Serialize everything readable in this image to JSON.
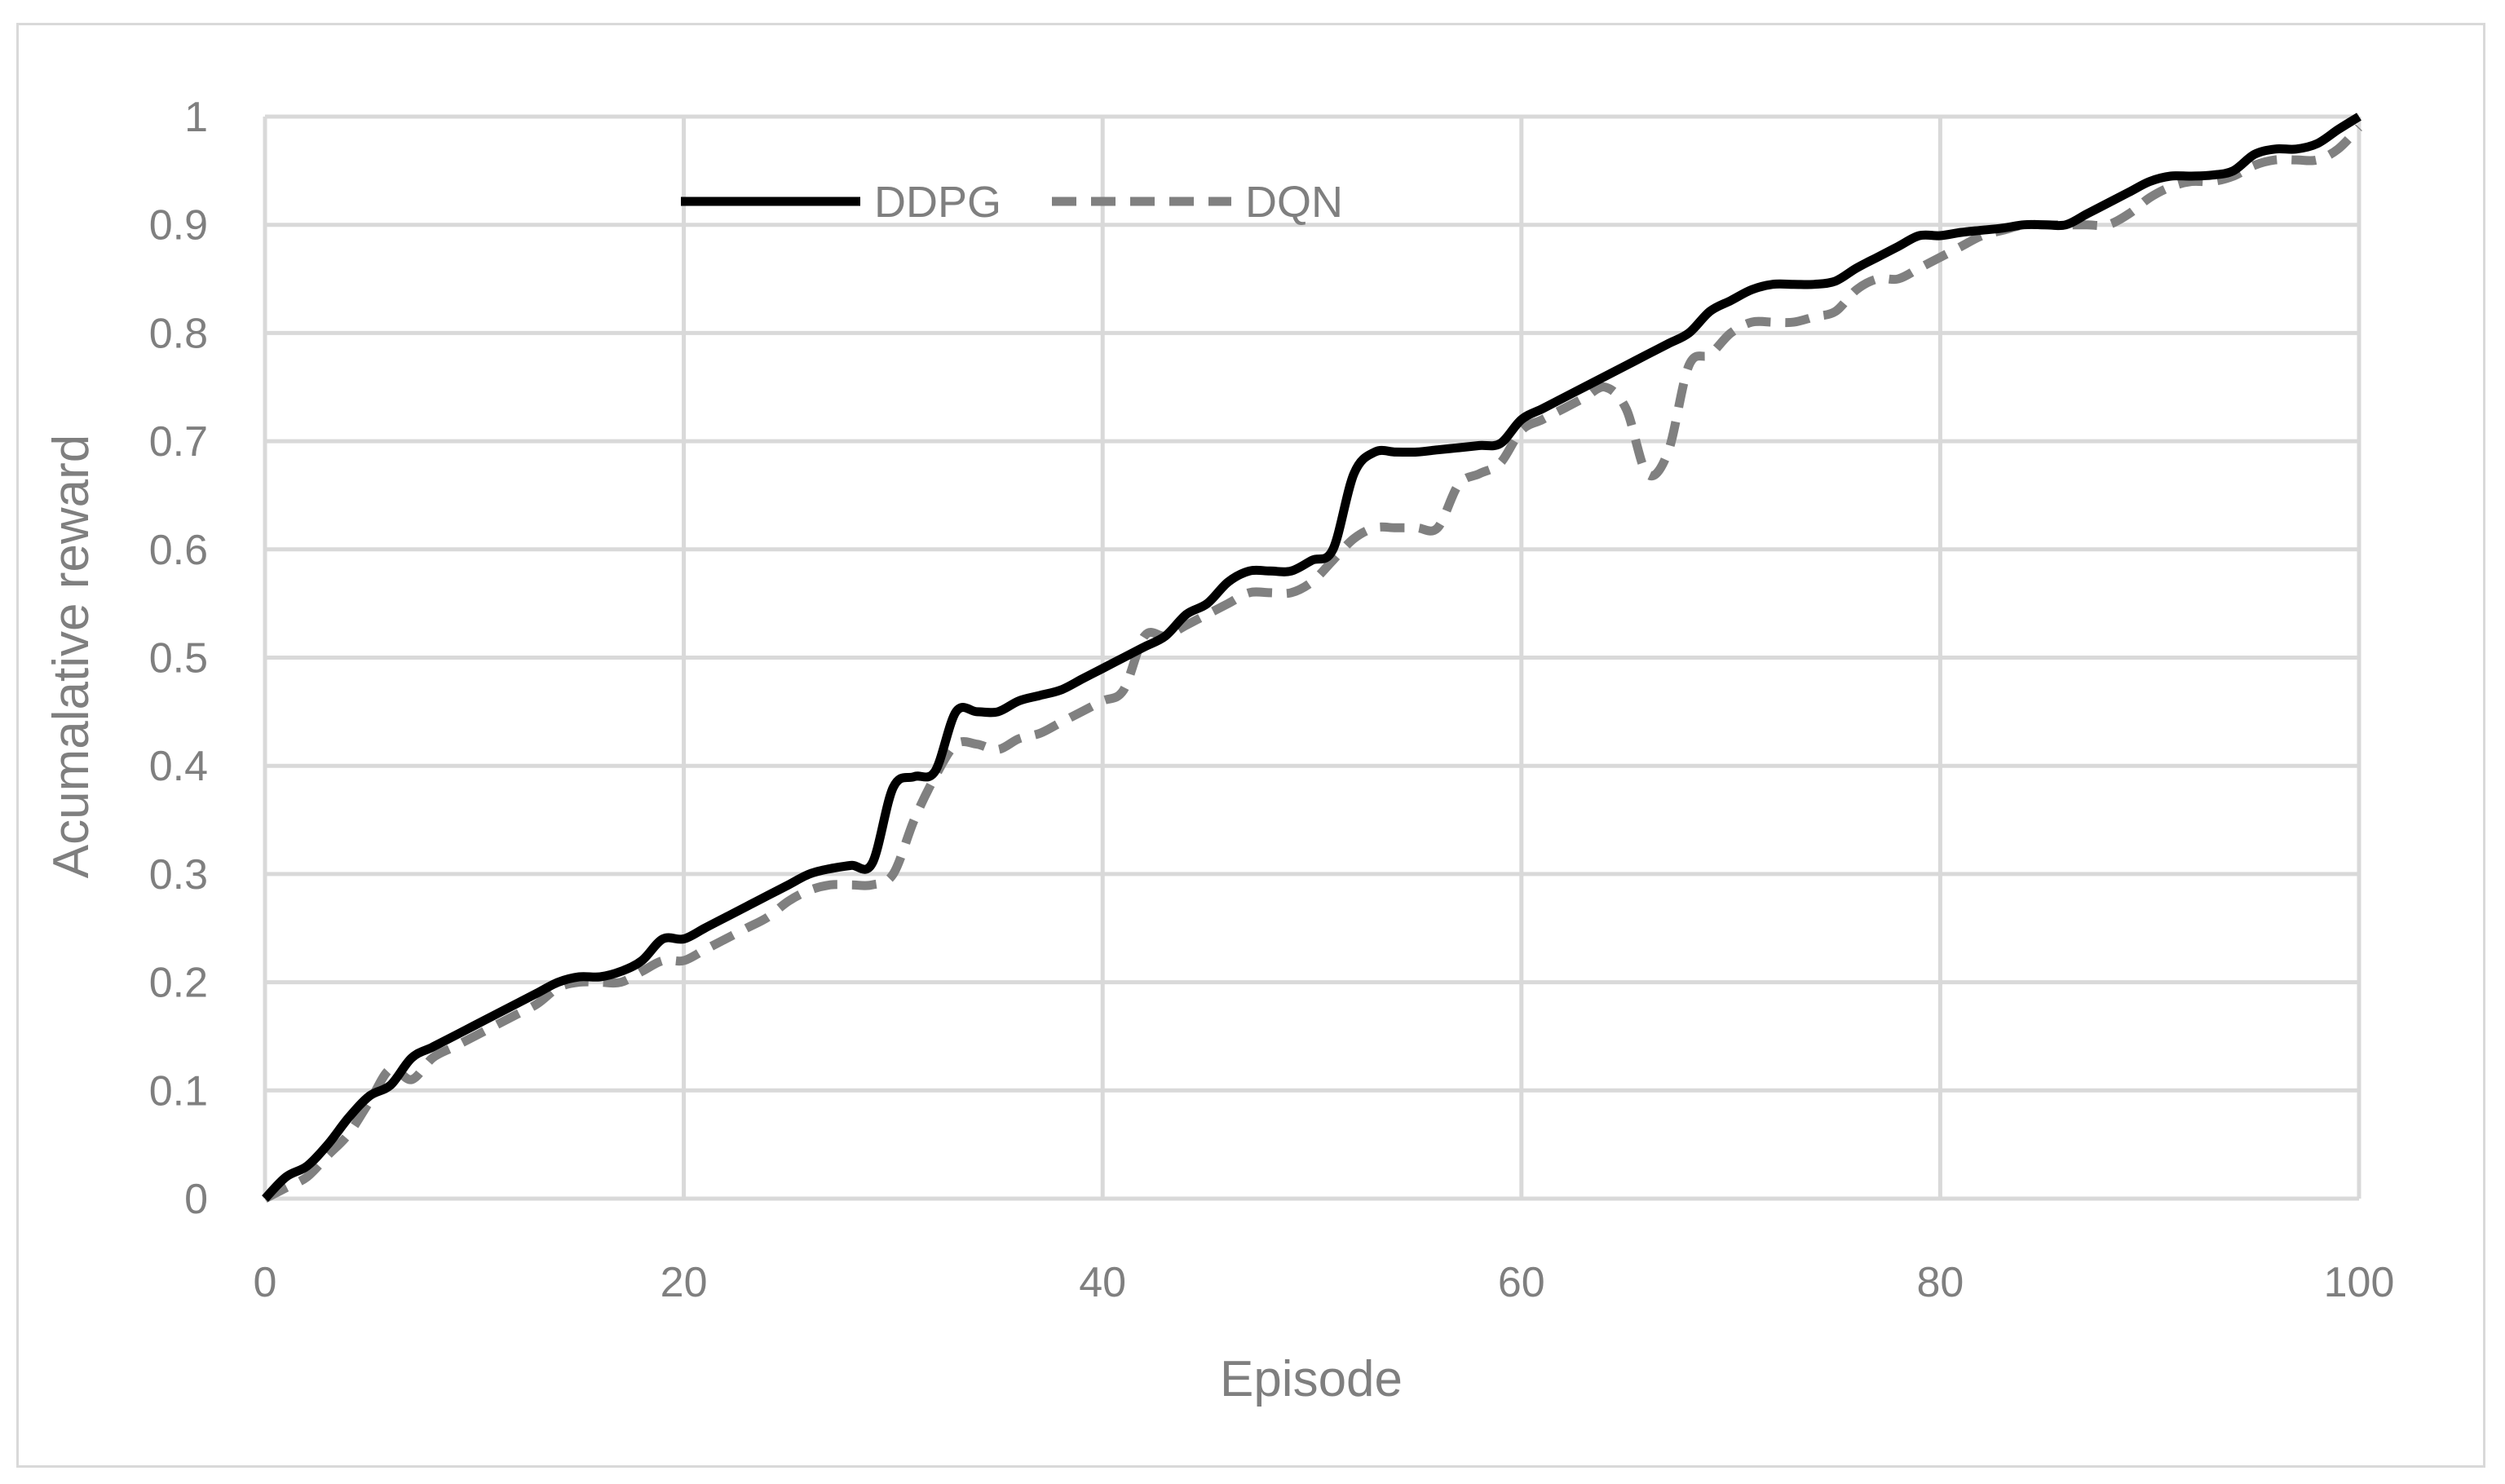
{
  "chart_data": {
    "type": "line",
    "xlabel": "Episode",
    "ylabel": "Acumalative reward",
    "xlim": [
      0,
      100
    ],
    "ylim": [
      0,
      1
    ],
    "xticks": [
      "0",
      "20",
      "40",
      "60",
      "80",
      "100"
    ],
    "yticks": [
      "0",
      "0.1",
      "0.2",
      "0.3",
      "0.4",
      "0.5",
      "0.6",
      "0.7",
      "0.8",
      "0.9",
      "1"
    ],
    "grid": true,
    "legend_position": "top-left",
    "colors": {
      "grid": "#d9d9d9",
      "ddpg": "#000000",
      "dqn": "#808080",
      "text": "#7f7f7f"
    },
    "series": [
      {
        "name": "DDPG",
        "style": "solid",
        "x": [
          0,
          1,
          2,
          3,
          4,
          5,
          6,
          7,
          8,
          9,
          10,
          11,
          12,
          13,
          14,
          15,
          16,
          17,
          18,
          19,
          20,
          21,
          22,
          23,
          24,
          25,
          26,
          27,
          28,
          29,
          30,
          31,
          32,
          33,
          34,
          35,
          36,
          37,
          38,
          39,
          40,
          41,
          42,
          43,
          44,
          45,
          46,
          47,
          48,
          49,
          50,
          51,
          52,
          53,
          54,
          55,
          56,
          57,
          58,
          59,
          60,
          61,
          62,
          63,
          64,
          65,
          66,
          67,
          68,
          69,
          70,
          71,
          72,
          73,
          74,
          75,
          76,
          77,
          78,
          79,
          80,
          81,
          82,
          83,
          84,
          85,
          86,
          87,
          88,
          89,
          90,
          91,
          92,
          93,
          94,
          95,
          96,
          97,
          98,
          99,
          100
        ],
        "values": [
          0,
          0.02,
          0.03,
          0.05,
          0.075,
          0.095,
          0.105,
          0.13,
          0.14,
          0.15,
          0.16,
          0.17,
          0.18,
          0.19,
          0.2,
          0.205,
          0.205,
          0.21,
          0.22,
          0.24,
          0.24,
          0.25,
          0.26,
          0.27,
          0.28,
          0.29,
          0.3,
          0.305,
          0.308,
          0.31,
          0.38,
          0.39,
          0.395,
          0.45,
          0.45,
          0.45,
          0.46,
          0.465,
          0.47,
          0.48,
          0.49,
          0.5,
          0.51,
          0.52,
          0.54,
          0.55,
          0.57,
          0.58,
          0.58,
          0.58,
          0.59,
          0.6,
          0.67,
          0.69,
          0.69,
          0.69,
          0.692,
          0.694,
          0.696,
          0.698,
          0.72,
          0.73,
          0.74,
          0.75,
          0.76,
          0.77,
          0.78,
          0.79,
          0.8,
          0.82,
          0.83,
          0.84,
          0.845,
          0.845,
          0.845,
          0.848,
          0.86,
          0.87,
          0.88,
          0.89,
          0.89,
          0.893,
          0.895,
          0.897,
          0.9,
          0.9,
          0.9,
          0.91,
          0.92,
          0.93,
          0.94,
          0.945,
          0.945,
          0.946,
          0.95,
          0.965,
          0.97,
          0.97,
          0.975,
          0.988,
          1.0
        ]
      },
      {
        "name": "DQN",
        "style": "dashed",
        "x": [
          0,
          1,
          2,
          3,
          4,
          5,
          6,
          7,
          8,
          9,
          10,
          11,
          12,
          13,
          14,
          15,
          16,
          17,
          18,
          19,
          20,
          21,
          22,
          23,
          24,
          25,
          26,
          27,
          28,
          29,
          30,
          31,
          32,
          33,
          34,
          35,
          36,
          37,
          38,
          39,
          40,
          41,
          42,
          43,
          44,
          45,
          46,
          47,
          48,
          49,
          50,
          51,
          52,
          53,
          54,
          55,
          56,
          57,
          58,
          59,
          60,
          61,
          62,
          63,
          64,
          65,
          66,
          67,
          68,
          69,
          70,
          71,
          72,
          73,
          74,
          75,
          76,
          77,
          78,
          79,
          80,
          81,
          82,
          83,
          84,
          85,
          86,
          87,
          88,
          89,
          90,
          91,
          92,
          93,
          94,
          95,
          96,
          97,
          98,
          99,
          100
        ],
        "values": [
          0,
          0.01,
          0.02,
          0.04,
          0.06,
          0.09,
          0.12,
          0.11,
          0.13,
          0.14,
          0.15,
          0.16,
          0.17,
          0.18,
          0.195,
          0.2,
          0.2,
          0.2,
          0.21,
          0.22,
          0.22,
          0.23,
          0.24,
          0.25,
          0.26,
          0.275,
          0.285,
          0.29,
          0.29,
          0.29,
          0.3,
          0.35,
          0.39,
          0.42,
          0.42,
          0.415,
          0.425,
          0.43,
          0.44,
          0.45,
          0.46,
          0.47,
          0.52,
          0.52,
          0.53,
          0.54,
          0.55,
          0.56,
          0.56,
          0.56,
          0.57,
          0.59,
          0.61,
          0.62,
          0.62,
          0.62,
          0.62,
          0.66,
          0.67,
          0.68,
          0.71,
          0.72,
          0.73,
          0.74,
          0.75,
          0.73,
          0.67,
          0.69,
          0.77,
          0.78,
          0.8,
          0.81,
          0.81,
          0.81,
          0.815,
          0.82,
          0.84,
          0.85,
          0.85,
          0.86,
          0.87,
          0.88,
          0.89,
          0.895,
          0.9,
          0.9,
          0.9,
          0.9,
          0.9,
          0.91,
          0.925,
          0.935,
          0.94,
          0.94,
          0.945,
          0.955,
          0.96,
          0.96,
          0.96,
          0.97,
          0.99
        ]
      }
    ]
  }
}
